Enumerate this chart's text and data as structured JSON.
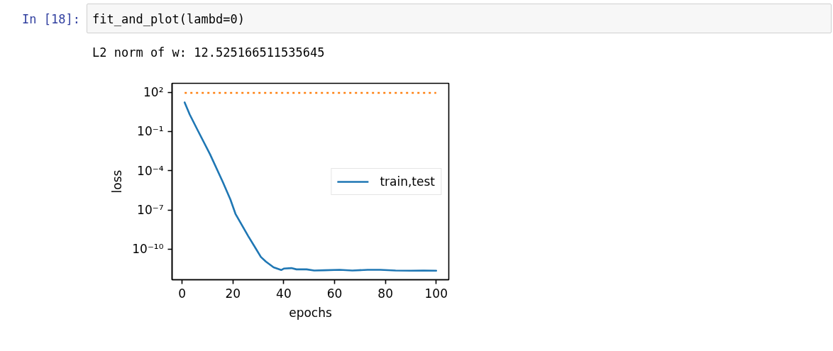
{
  "chart_data": {
    "type": "line",
    "annotations": [
      "In [18]:",
      "fit_and_plot(lambd=0)",
      "L2 norm of w: 12.525166511535645"
    ],
    "xlabel": "epochs",
    "ylabel": "loss",
    "log": "y",
    "grid": false,
    "legend": "center right",
    "line_style": "solid",
    "xlim": [
      -3.95,
      104.95
    ],
    "xticks": [
      0,
      20,
      40,
      60,
      80,
      100
    ],
    "ylim": [
      4.5e-13,
      490
    ],
    "yticks": [
      {
        "value": 100,
        "label": "10²"
      },
      {
        "value": 0.1,
        "label": "10⁻¹"
      },
      {
        "value": 0.0001,
        "label": "10⁻⁴"
      },
      {
        "value": 1e-07,
        "label": "10⁻⁷"
      },
      {
        "value": 1e-10,
        "label": "10⁻¹⁰"
      }
    ],
    "series": [
      {
        "name": "train,test",
        "color": "#1f77b4",
        "x": [
          1,
          3,
          6,
          11,
          16,
          19,
          21,
          26,
          29,
          31,
          33,
          36,
          39,
          40,
          43,
          45,
          49,
          52,
          56,
          62,
          67,
          73,
          78,
          84,
          90,
          95,
          100
        ],
        "values": [
          17,
          2.0,
          0.14,
          0.0018,
          1.4e-05,
          6.3e-07,
          5e-08,
          1e-09,
          1.1e-10,
          2.5e-11,
          1.1e-11,
          4e-12,
          2.5e-12,
          3.2e-12,
          3.5e-12,
          2.8e-12,
          2.8e-12,
          2.3e-12,
          2.4e-12,
          2.6e-12,
          2.3e-12,
          2.6e-12,
          2.6e-12,
          2.3e-12,
          2.2e-12,
          2.3e-12,
          2.2e-12
        ]
      },
      {
        "color": "#ff7f0e",
        "line_style": "dotted",
        "x": [
          1,
          100
        ],
        "values": [
          90,
          90
        ]
      }
    ]
  }
}
